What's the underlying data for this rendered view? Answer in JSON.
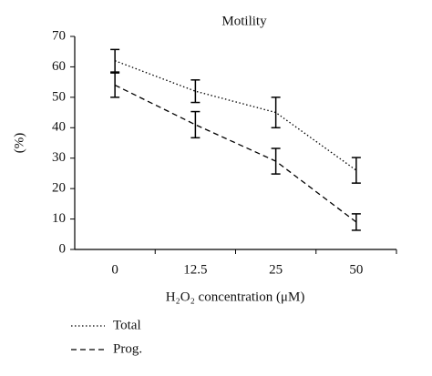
{
  "chart_data": {
    "type": "line",
    "title": "Motility",
    "x_label": "H₂O₂ concentration (μM)",
    "y_label": "(%)",
    "categories": [
      "0",
      "12.5",
      "25",
      "50"
    ],
    "series": [
      {
        "name": "Total",
        "color": "#000000",
        "style": "dotted",
        "values": [
          62,
          52,
          45,
          26
        ],
        "errors": [
          3.7,
          3.7,
          5,
          4.2
        ]
      },
      {
        "name": "Prog.",
        "color": "#000000",
        "style": "dashed",
        "values": [
          54,
          41,
          29,
          9
        ],
        "errors": [
          4,
          4.3,
          4.2,
          2.7
        ]
      }
    ],
    "ylim": [
      0,
      70
    ],
    "yticks": [
      0,
      10,
      20,
      30,
      40,
      50,
      60,
      70
    ],
    "grid": false,
    "legend": "bottom-left"
  }
}
